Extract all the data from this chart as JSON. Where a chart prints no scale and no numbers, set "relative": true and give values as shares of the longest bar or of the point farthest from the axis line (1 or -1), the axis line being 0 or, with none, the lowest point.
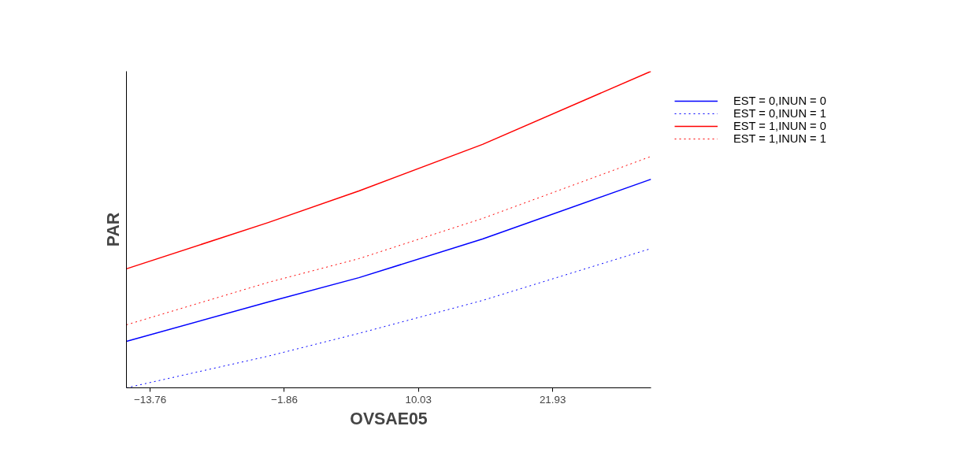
{
  "chart_data": {
    "type": "line",
    "xlabel": "OVSAE05",
    "ylabel": "PAR",
    "x": [
      -15.86,
      -3.29,
      4.75,
      15.71,
      30.65
    ],
    "xlim": [
      -15.86,
      30.65
    ],
    "xticks": [
      -13.76,
      -1.86,
      10.03,
      21.93
    ],
    "relative": true,
    "tick_labels": "x",
    "legend": "top right",
    "grid": false,
    "series": [
      {
        "name": "EST = 0,INUN = 0",
        "color": "#0000ff",
        "line_style": "solid",
        "values": [
          0.147,
          0.271,
          0.348,
          0.47,
          0.659
        ]
      },
      {
        "name": "EST = 0,INUN = 1",
        "color": "#0000ff",
        "line_style": "dotted",
        "values": [
          0.0,
          0.1,
          0.172,
          0.276,
          0.44
        ]
      },
      {
        "name": "EST = 1,INUN = 0",
        "color": "#ff0000",
        "line_style": "solid",
        "values": [
          0.376,
          0.522,
          0.622,
          0.769,
          1.0
        ]
      },
      {
        "name": "EST = 1,INUN = 1",
        "color": "#ff0000",
        "line_style": "dotted",
        "values": [
          0.199,
          0.333,
          0.408,
          0.535,
          0.731
        ]
      }
    ]
  }
}
